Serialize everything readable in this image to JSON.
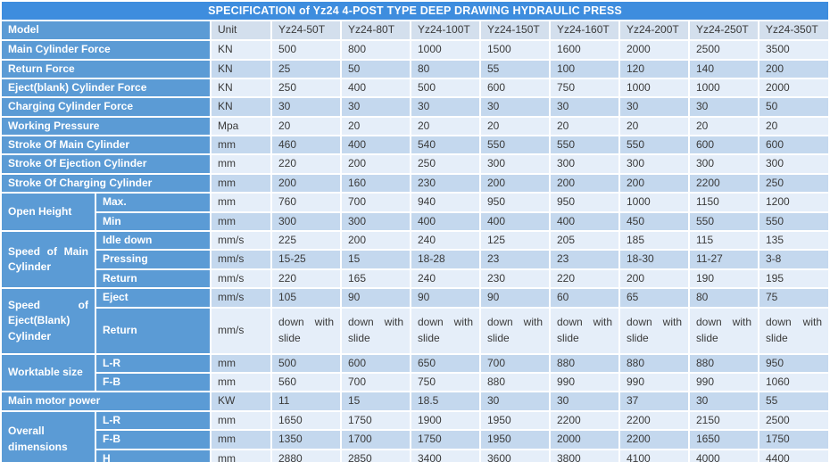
{
  "title": "SPECIFICATION of Yz24 4-POST TYPE DEEP DRAWING HYDRAULIC PRESS",
  "colors": {
    "title_bar": "#3e8dde",
    "label_blue": "#5b9bd5",
    "header_row": "#d3dfed",
    "band_light": "#e5eef9",
    "band_dark": "#c4d8ee",
    "grid_white": "#ffffff",
    "data_text": "#3a3a3a"
  },
  "table": {
    "model_label": "Model",
    "unit_label": "Unit",
    "models": [
      "Yz24-50T",
      "Yz24-80T",
      "Yz24-100T",
      "Yz24-150T",
      "Yz24-160T",
      "Yz24-200T",
      "Yz24-250T",
      "Yz24-350T"
    ],
    "rows": [
      {
        "label": "Main Cylinder Force",
        "unit": "KN",
        "values": [
          "500",
          "800",
          "1000",
          "1500",
          "1600",
          "2000",
          "2500",
          "3500"
        ]
      },
      {
        "label": "Return Force",
        "unit": "KN",
        "values": [
          "25",
          "50",
          "80",
          "55",
          "100",
          "120",
          "140",
          "200"
        ]
      },
      {
        "label": "Eject(blank) Cylinder Force",
        "unit": "KN",
        "values": [
          "250",
          "400",
          "500",
          "600",
          "750",
          "1000",
          "1000",
          "2000"
        ]
      },
      {
        "label": "Charging Cylinder Force",
        "unit": "KN",
        "values": [
          "30",
          "30",
          "30",
          "30",
          "30",
          "30",
          "30",
          "50"
        ]
      },
      {
        "label": "Working Pressure",
        "unit": "Mpa",
        "values": [
          "20",
          "20",
          "20",
          "20",
          "20",
          "20",
          "20",
          "20"
        ]
      },
      {
        "label": "Stroke Of Main Cylinder",
        "unit": "mm",
        "values": [
          "460",
          "400",
          "540",
          "550",
          "550",
          "550",
          "600",
          "600"
        ]
      },
      {
        "label": "Stroke Of Ejection Cylinder",
        "unit": "mm",
        "values": [
          "220",
          "200",
          "250",
          "300",
          "300",
          "300",
          "300",
          "300"
        ]
      },
      {
        "label": "Stroke Of Charging Cylinder",
        "unit": "mm",
        "values": [
          "200",
          "160",
          "230",
          "200",
          "200",
          "200",
          "2200",
          "250"
        ]
      },
      {
        "group": "Open Height",
        "span": 2,
        "sub": "Max.",
        "unit": "mm",
        "values": [
          "760",
          "700",
          "940",
          "950",
          "950",
          "1000",
          "1150",
          "1200"
        ]
      },
      {
        "sub": "Min",
        "unit": "mm",
        "values": [
          "300",
          "300",
          "400",
          "400",
          "400",
          "450",
          "550",
          "550"
        ]
      },
      {
        "group": "Speed of Main Cylinder",
        "span": 3,
        "sub": "Idle down",
        "unit": "mm/s",
        "values": [
          "225",
          "200",
          "240",
          "125",
          "205",
          "185",
          "115",
          "135"
        ]
      },
      {
        "sub": "Pressing",
        "unit": "mm/s",
        "values": [
          "15-25",
          "15",
          "18-28",
          "23",
          "23",
          "18-30",
          "11-27",
          "3-8"
        ]
      },
      {
        "sub": "Return",
        "unit": "mm/s",
        "values": [
          "220",
          "165",
          "240",
          "230",
          "220",
          "200",
          "190",
          "195"
        ]
      },
      {
        "group": "Speed of Eject(Blank) Cylinder",
        "span": 2,
        "sub": "Eject",
        "unit": "mm/s",
        "values": [
          "105",
          "90",
          "90",
          "90",
          "60",
          "65",
          "80",
          "75"
        ]
      },
      {
        "sub": "Return",
        "unit": "mm/s",
        "tall": true,
        "values": [
          "down with slide",
          "down with slide",
          "down with slide",
          "down with slide",
          "down with slide",
          "down with slide",
          "down with slide",
          "down with slide"
        ]
      },
      {
        "group": "Worktable size",
        "span": 2,
        "sub": "L-R",
        "unit": "mm",
        "values": [
          "500",
          "600",
          "650",
          "700",
          "880",
          "880",
          "880",
          "950"
        ]
      },
      {
        "sub": "F-B",
        "unit": "mm",
        "values": [
          "560",
          "700",
          "750",
          "880",
          "990",
          "990",
          "990",
          "1060"
        ]
      },
      {
        "label": "Main motor power",
        "unit": "KW",
        "values": [
          "11",
          "15",
          "18.5",
          "30",
          "30",
          "37",
          "30",
          "55"
        ]
      },
      {
        "group": "Overall dimensions",
        "span": 3,
        "sub": "L-R",
        "unit": "mm",
        "values": [
          "1650",
          "1750",
          "1900",
          "1950",
          "2200",
          "2200",
          "2150",
          "2500"
        ]
      },
      {
        "sub": "F-B",
        "unit": "mm",
        "values": [
          "1350",
          "1700",
          "1750",
          "1950",
          "2000",
          "2200",
          "1650",
          "1750"
        ]
      },
      {
        "sub": "H",
        "unit": "mm",
        "values": [
          "2880",
          "2850",
          "3400",
          "3600",
          "3800",
          "4100",
          "4000",
          "4400"
        ]
      }
    ]
  }
}
